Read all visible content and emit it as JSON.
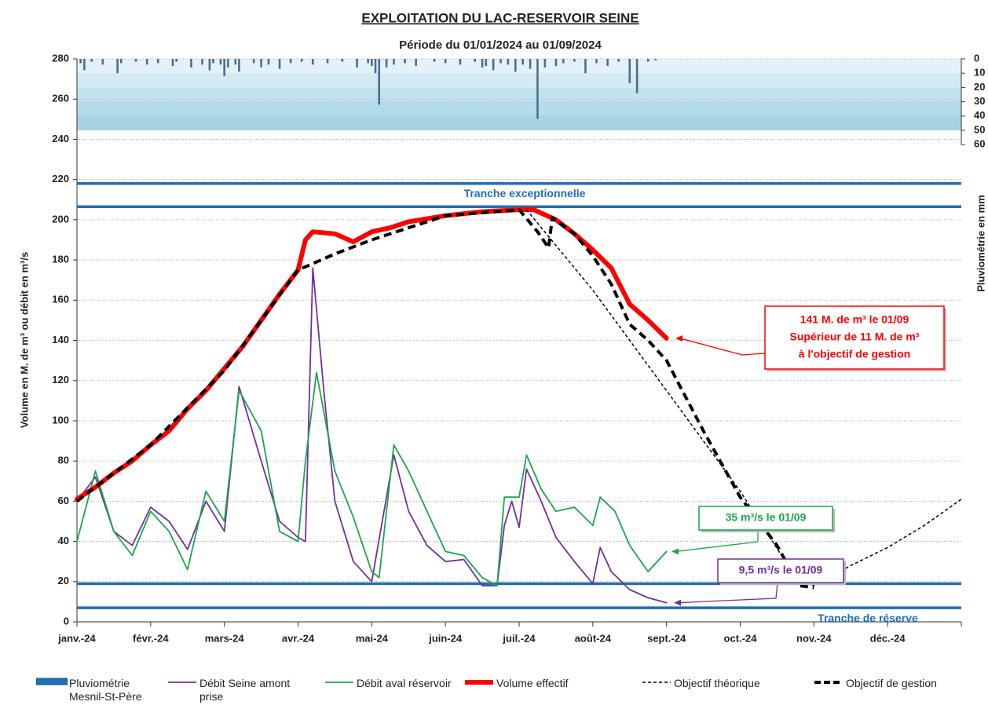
{
  "chart_data": {
    "type": "line",
    "title": "EXPLOITATION  DU  LAC-RESERVOIR  SEINE",
    "subtitle": "Période du 01/01/2024 au 01/09/2024",
    "y_label": "Volume en M. de m³ ou débit en m³/s",
    "y2_label": "Pluviométrie en mm",
    "xlim": [
      0,
      12
    ],
    "xticks": [
      {
        "value": 0,
        "label": "janv.-24"
      },
      {
        "value": 1,
        "label": "févr.-24"
      },
      {
        "value": 2,
        "label": "mars-24"
      },
      {
        "value": 3,
        "label": "avr.-24"
      },
      {
        "value": 4,
        "label": "mai-24"
      },
      {
        "value": 5,
        "label": "juin-24"
      },
      {
        "value": 6,
        "label": "juil.-24"
      },
      {
        "value": 7,
        "label": "août-24"
      },
      {
        "value": 8,
        "label": "sept.-24"
      },
      {
        "value": 9,
        "label": "oct.-24"
      },
      {
        "value": 10,
        "label": "nov.-24"
      },
      {
        "value": 11,
        "label": "déc.-24"
      },
      12
    ],
    "ylim": [
      0,
      280
    ],
    "yticks": [
      0,
      20,
      40,
      60,
      80,
      100,
      120,
      140,
      160,
      180,
      200,
      220,
      240,
      260,
      280
    ],
    "y2lim": [
      0,
      394
    ],
    "y2ticks": [
      0,
      10,
      20,
      30,
      40,
      50,
      60
    ],
    "y2_inverted": true,
    "grid": true,
    "hlines": [
      {
        "value": 218
      },
      {
        "value": 206.5,
        "label": "Tranche exceptionnelle"
      },
      {
        "value": 19
      },
      {
        "value": 7,
        "label": "Tranche de réserve"
      }
    ],
    "hline_color": "#1f6fb5",
    "series": [
      {
        "name": "Pluviométrie Mesnil-St-Père",
        "type": "bar",
        "axis": "y2",
        "color": "#4a6e8f",
        "x": [
          0.05,
          0.1,
          0.2,
          0.35,
          0.55,
          0.6,
          0.8,
          0.95,
          1.1,
          1.3,
          1.35,
          1.55,
          1.7,
          1.8,
          1.85,
          1.95,
          2.0,
          2.05,
          2.15,
          2.2,
          2.4,
          2.5,
          2.6,
          2.75,
          2.9,
          3.05,
          3.2,
          3.4,
          3.6,
          3.8,
          3.95,
          4.0,
          4.05,
          4.1,
          4.2,
          4.3,
          4.45,
          4.6,
          4.85,
          5.0,
          5.2,
          5.4,
          5.5,
          5.55,
          5.65,
          5.75,
          5.85,
          5.95,
          6.05,
          6.15,
          6.25,
          6.35,
          6.5,
          6.6,
          6.75,
          6.9,
          7.05,
          7.2,
          7.35,
          7.5,
          7.6,
          7.75,
          7.85
        ],
        "values": [
          3,
          8,
          2,
          4,
          10,
          3,
          2,
          4,
          3,
          5,
          2,
          6,
          4,
          8,
          3,
          4,
          12,
          6,
          4,
          9,
          3,
          6,
          4,
          7,
          3,
          2,
          4,
          3,
          2,
          6,
          3,
          5,
          10,
          32,
          6,
          4,
          3,
          5,
          2,
          3,
          4,
          2,
          6,
          5,
          8,
          3,
          4,
          9,
          4,
          7,
          42,
          6,
          5,
          3,
          2,
          10,
          3,
          5,
          2,
          17,
          24,
          2,
          1
        ]
      },
      {
        "name": "Débit Seine amont prise",
        "color": "#7030a0",
        "x": [
          0,
          0.25,
          0.5,
          0.75,
          1,
          1.25,
          1.5,
          1.75,
          2,
          2.2,
          2.5,
          2.75,
          3,
          3.1,
          3.2,
          3.35,
          3.5,
          3.75,
          4,
          4.2,
          4.3,
          4.5,
          4.75,
          5,
          5.25,
          5.5,
          5.7,
          5.8,
          5.9,
          6,
          6.1,
          6.3,
          6.5,
          6.75,
          7,
          7.1,
          7.25,
          7.5,
          7.75,
          8
        ],
        "values": [
          60,
          72,
          45,
          38,
          57,
          50,
          36,
          60,
          45,
          117,
          80,
          50,
          42,
          40,
          176,
          115,
          60,
          30,
          20,
          62,
          83,
          55,
          38,
          30,
          31,
          18,
          18,
          48,
          60,
          47,
          76,
          60,
          42,
          30,
          19,
          37,
          25,
          16,
          12,
          9.5
        ]
      },
      {
        "name": "Débit aval réservoir",
        "color": "#1aa64a",
        "x": [
          0,
          0.25,
          0.5,
          0.75,
          1,
          1.25,
          1.5,
          1.75,
          2,
          2.2,
          2.5,
          2.75,
          3,
          3.1,
          3.25,
          3.5,
          3.75,
          4,
          4.1,
          4.3,
          4.5,
          4.75,
          5,
          5.25,
          5.5,
          5.7,
          5.8,
          6,
          6.1,
          6.3,
          6.5,
          6.75,
          7,
          7.1,
          7.3,
          7.5,
          7.75,
          8
        ],
        "values": [
          40,
          75,
          45,
          33,
          55,
          45,
          26,
          65,
          50,
          115,
          95,
          45,
          40,
          80,
          124,
          75,
          52,
          25,
          22,
          88,
          75,
          55,
          35,
          33,
          22,
          18,
          62,
          62,
          83,
          66,
          55,
          57,
          48,
          62,
          55,
          38,
          25,
          35
        ]
      },
      {
        "name": "Volume effectif",
        "color": "#ff0000",
        "x": [
          0,
          0.25,
          0.5,
          0.75,
          1,
          1.25,
          1.5,
          1.75,
          2,
          2.25,
          2.5,
          2.75,
          3,
          3.1,
          3.2,
          3.5,
          3.75,
          4,
          4.25,
          4.5,
          5,
          5.5,
          6,
          6.2,
          6.5,
          6.75,
          7,
          7.25,
          7.5,
          7.75,
          8
        ],
        "values": [
          61,
          67,
          74,
          80,
          88,
          95,
          106,
          115,
          126,
          137,
          150,
          163,
          175,
          190,
          194,
          193,
          189,
          194,
          196,
          199,
          202,
          204,
          205,
          205,
          200,
          193,
          185,
          176,
          158,
          150,
          141
        ]
      },
      {
        "name": "Objectif théorique",
        "color": "#000000",
        "dashed": true,
        "x": [
          6.1,
          7,
          8,
          9,
          9.7,
          10,
          10.5,
          11,
          11.5,
          12
        ],
        "values": [
          205,
          165,
          115,
          65,
          25,
          18,
          28,
          37,
          48,
          61
        ]
      },
      {
        "name": "Objectif de gestion",
        "color": "#000000",
        "dashed": true,
        "x": [
          0,
          1,
          2,
          3,
          3.5,
          4,
          5,
          6,
          6.25,
          6.4,
          6.45,
          6.75,
          7,
          7.25,
          7.5,
          7.75,
          8,
          8.5,
          9,
          9.5,
          9.8,
          10
        ],
        "values": [
          60,
          88,
          125,
          175,
          183,
          190,
          202,
          205,
          194,
          186,
          201,
          193,
          182,
          168,
          148,
          140,
          130,
          95,
          62,
          38,
          18,
          17
        ]
      }
    ],
    "annotations": [
      {
        "lines": [
          "141 M. de m³ le 01/09",
          "Supérieur de 11 M. de m³",
          "à l'objectif de gestion"
        ],
        "color": "#ff0000"
      },
      {
        "lines": [
          "35 m³/s le 01/09"
        ],
        "color": "#1aa64a"
      },
      {
        "lines": [
          "9,5 m³/s le 01/09"
        ],
        "color": "#7030a0"
      }
    ]
  }
}
